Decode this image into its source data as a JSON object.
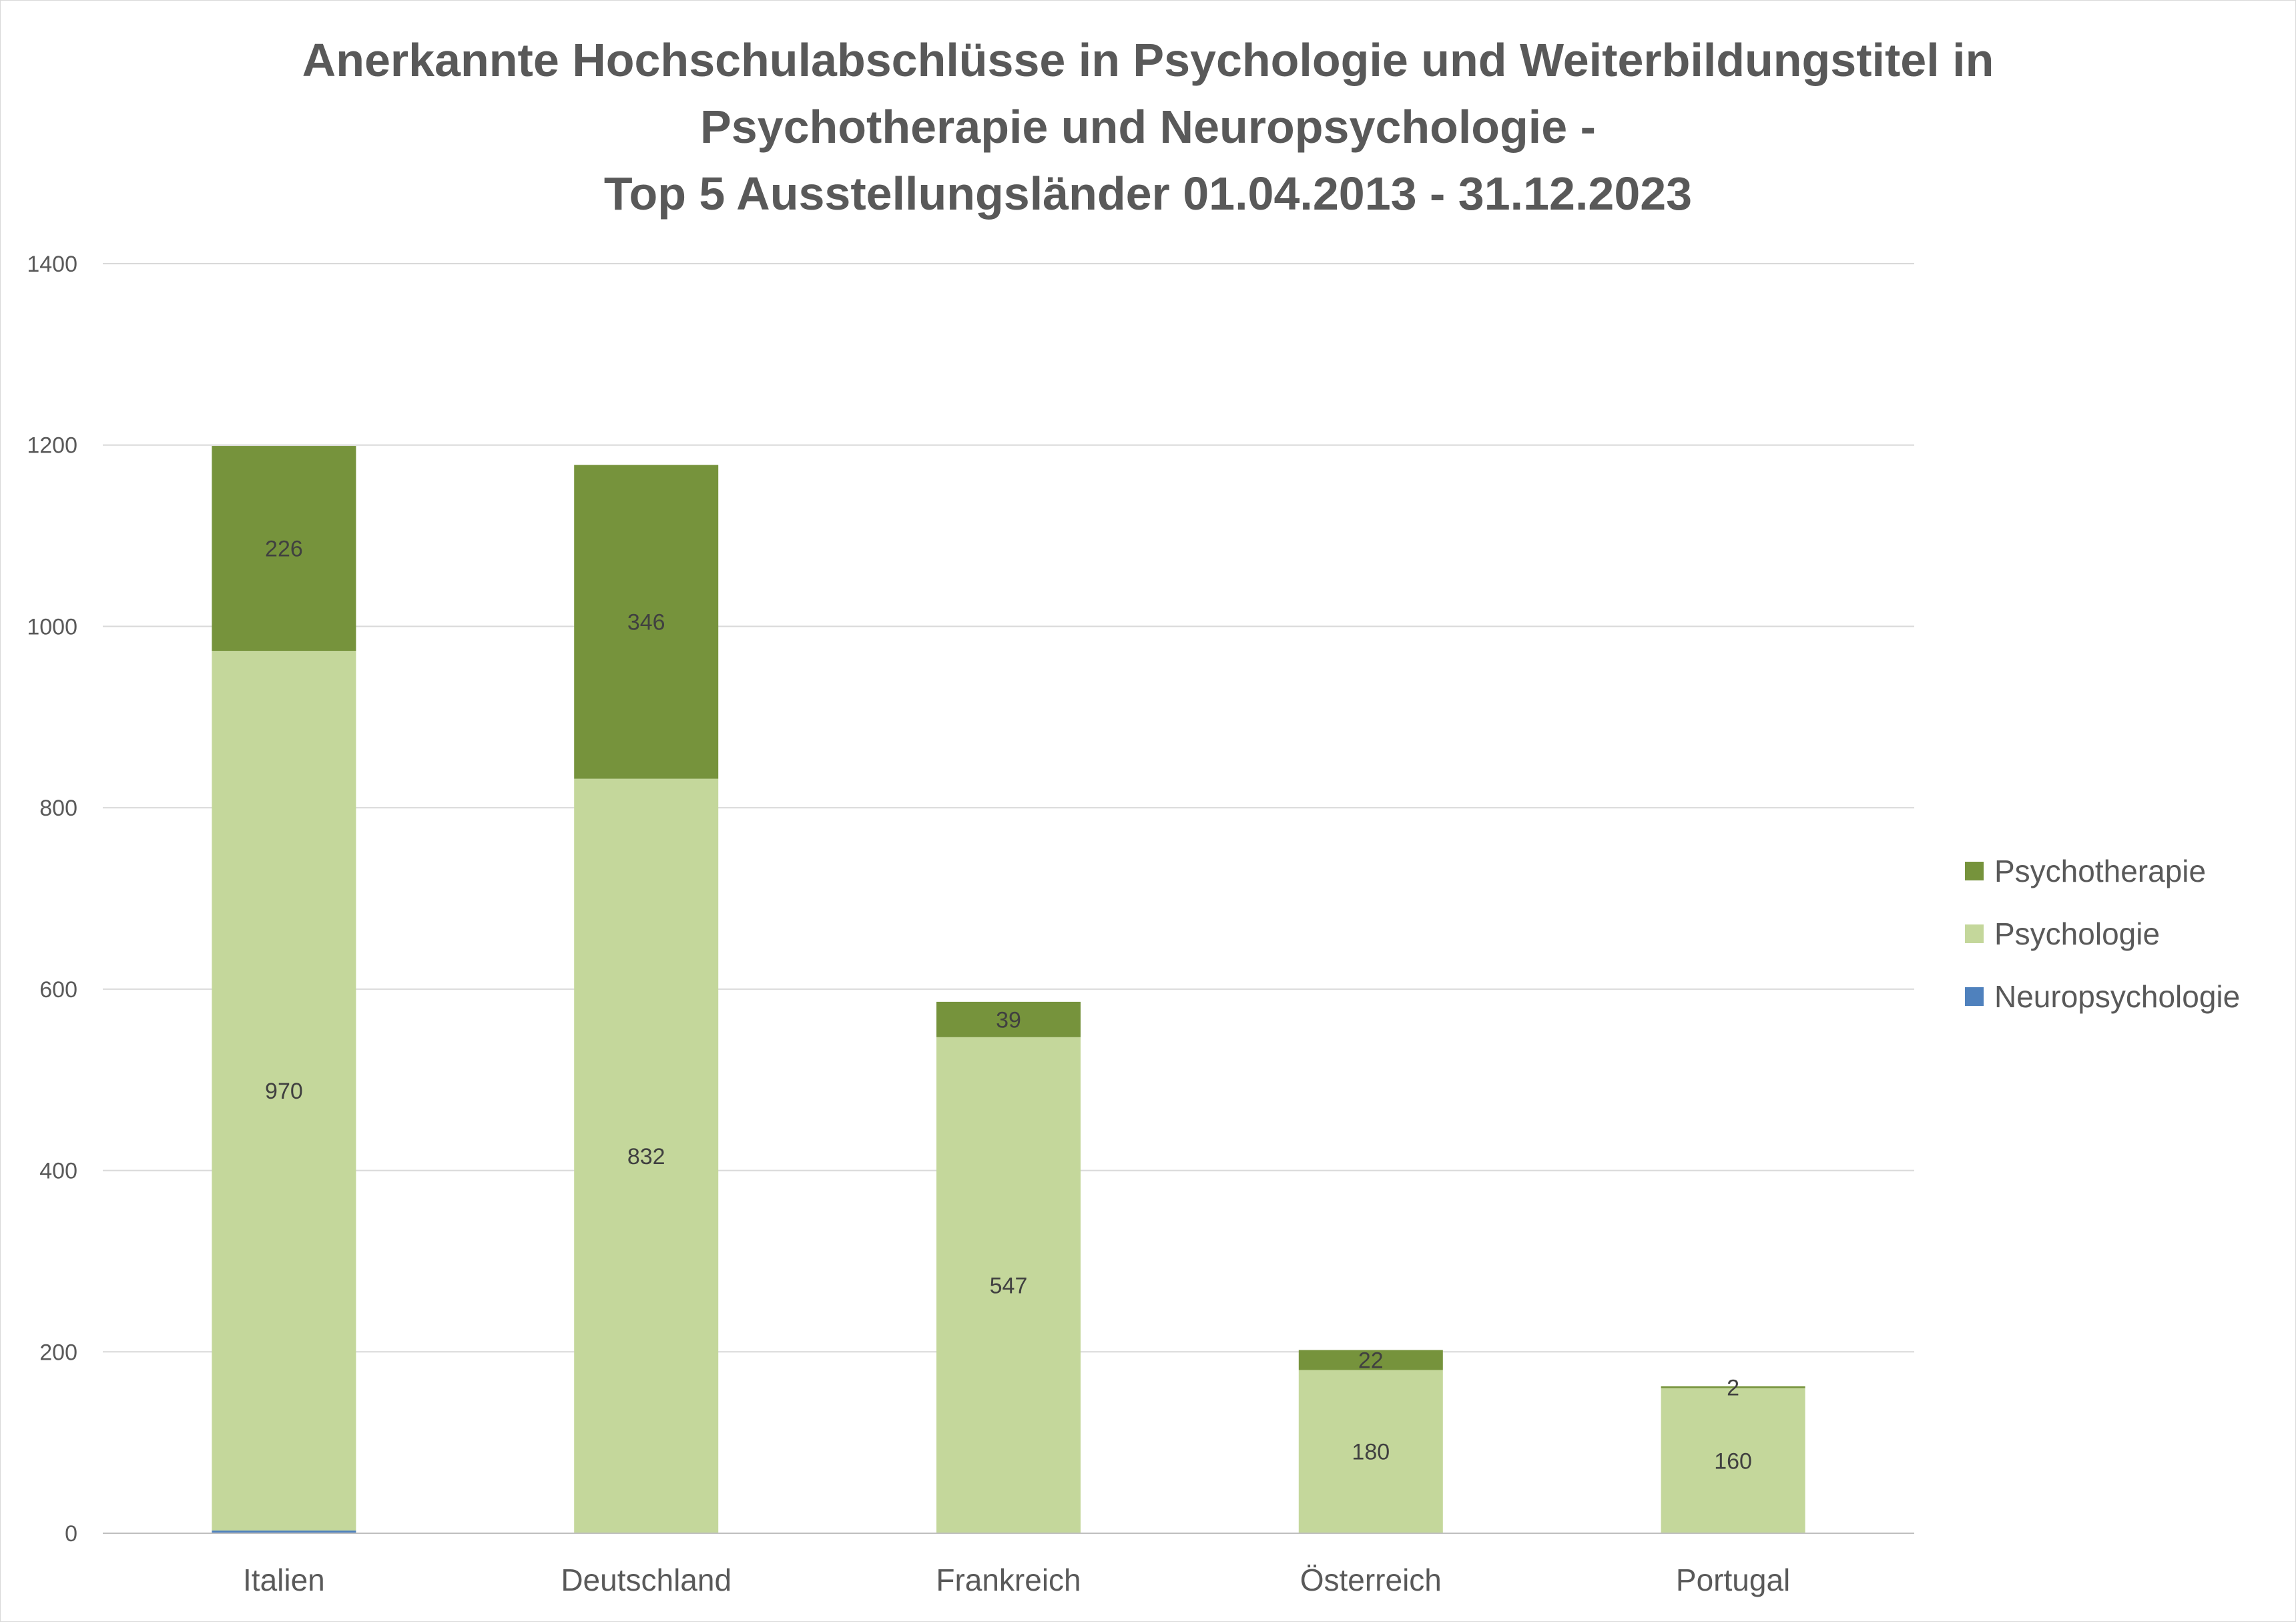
{
  "chart_data": {
    "type": "bar",
    "stacked": true,
    "title_lines": [
      "Anerkannte Hochschulabschlüsse in Psychologie und Weiterbildungstitel in",
      "Psychotherapie und Neuropsychologie -",
      "Top 5 Ausstellungsländer 01.04.2013  - 31.12.2023"
    ],
    "categories": [
      "Italien",
      "Deutschland",
      "Frankreich",
      "Österreich",
      "Portugal"
    ],
    "series": [
      {
        "name": "Neuropsychologie",
        "values": [
          3,
          0,
          0,
          0,
          0
        ],
        "color": "#4f81bd",
        "labels": [
          "",
          "",
          "",
          "",
          ""
        ]
      },
      {
        "name": "Psychologie",
        "values": [
          970,
          832,
          547,
          180,
          160
        ],
        "color": "#c4d79b",
        "labels": [
          "970",
          "832",
          "547",
          "180",
          "160"
        ]
      },
      {
        "name": "Psychotherapie",
        "values": [
          226,
          346,
          39,
          22,
          2
        ],
        "color": "#76933c",
        "labels": [
          "226",
          "346",
          "39",
          "22",
          "2"
        ]
      }
    ],
    "ylim": [
      0,
      1400
    ],
    "yticks": [
      "0",
      "200",
      "400",
      "600",
      "800",
      "1000",
      "1200",
      "1400"
    ],
    "grid": true,
    "legend_position": "right",
    "legend_order": [
      "Psychotherapie",
      "Psychologie",
      "Neuropsychologie"
    ]
  }
}
